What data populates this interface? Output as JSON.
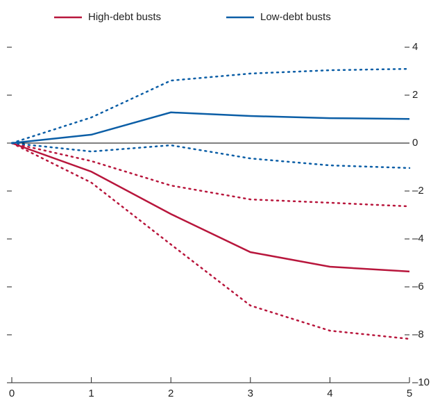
{
  "chart_data": {
    "type": "line",
    "x": [
      0,
      1,
      2,
      3,
      4,
      5
    ],
    "xlim": [
      0,
      5
    ],
    "xticks": [
      0,
      1,
      2,
      3,
      4,
      5
    ],
    "ylim": [
      -10,
      4
    ],
    "yticks": [
      4,
      2,
      0,
      {
        "value": -2,
        "label": "–2"
      },
      {
        "value": -4,
        "label": "–4"
      },
      {
        "value": -6,
        "label": "–6"
      },
      {
        "value": -8,
        "label": "–8"
      },
      {
        "value": -10,
        "label": "–10"
      }
    ],
    "series": [
      {
        "name": "High-debt busts",
        "color": "#b8163c",
        "values": [
          0,
          -1.19,
          -2.96,
          -4.55,
          -5.16,
          -5.36
        ],
        "upper": [
          0,
          -0.75,
          -1.77,
          -2.35,
          -2.49,
          -2.64
        ],
        "lower": [
          0,
          -1.65,
          -4.23,
          -6.78,
          -7.83,
          -8.17
        ]
      },
      {
        "name": "Low-debt busts",
        "color": "#0b5ea6",
        "values": [
          0,
          0.35,
          1.28,
          1.13,
          1.04,
          1.01
        ],
        "upper": [
          0,
          1.07,
          2.61,
          2.9,
          3.04,
          3.1
        ],
        "lower": [
          0,
          -0.35,
          -0.09,
          -0.64,
          -0.93,
          -1.04
        ]
      }
    ]
  }
}
